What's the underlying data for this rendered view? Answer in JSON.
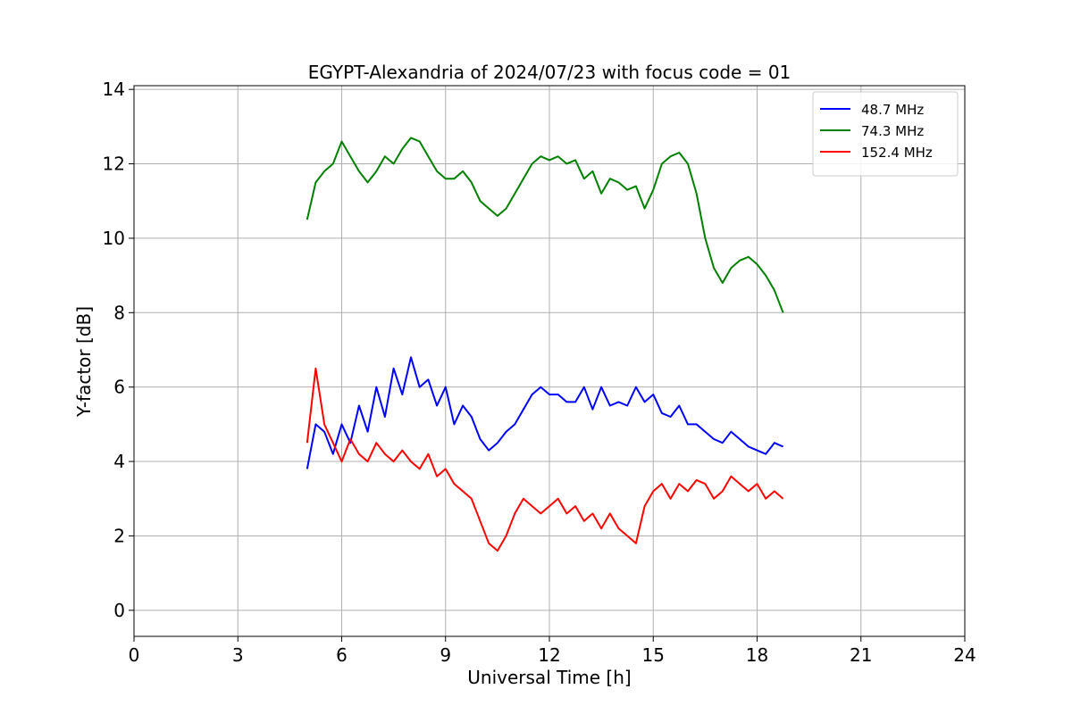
{
  "chart_data": {
    "type": "line",
    "title": "EGYPT-Alexandria of 2024/07/23 with focus code = 01",
    "xlabel": "Universal Time [h]",
    "ylabel": "Y-factor [dB]",
    "xlim": [
      0,
      24
    ],
    "ylim": [
      -0.7,
      14.1
    ],
    "xticks": [
      0,
      3,
      6,
      9,
      12,
      15,
      18,
      21,
      24
    ],
    "yticks": [
      0,
      2,
      4,
      6,
      8,
      10,
      12,
      14
    ],
    "xtick_labels": [
      "0",
      "3",
      "6",
      "9",
      "12",
      "15",
      "18",
      "21",
      "24"
    ],
    "ytick_labels": [
      "0",
      "2",
      "4",
      "6",
      "8",
      "10",
      "12",
      "14"
    ],
    "grid": true,
    "legend_position": "top-right",
    "series": [
      {
        "name": " 48.7 MHz",
        "color": "#0000ff",
        "x": [
          5.0,
          5.25,
          5.5,
          5.75,
          6.0,
          6.25,
          6.5,
          6.75,
          7.0,
          7.25,
          7.5,
          7.75,
          8.0,
          8.25,
          8.5,
          8.75,
          9.0,
          9.25,
          9.5,
          9.75,
          10.0,
          10.25,
          10.5,
          10.75,
          11.0,
          11.25,
          11.5,
          11.75,
          12.0,
          12.25,
          12.5,
          12.75,
          13.0,
          13.25,
          13.5,
          13.75,
          14.0,
          14.25,
          14.5,
          14.75,
          15.0,
          15.25,
          15.5,
          15.75,
          16.0,
          16.25,
          16.5,
          16.75,
          17.0,
          17.25,
          17.5,
          17.75,
          18.0,
          18.25,
          18.5,
          18.75
        ],
        "values": [
          3.8,
          5.0,
          4.8,
          4.2,
          5.0,
          4.5,
          5.5,
          4.8,
          6.0,
          5.2,
          6.5,
          5.8,
          6.8,
          6.0,
          6.2,
          5.5,
          6.0,
          5.0,
          5.5,
          5.2,
          4.6,
          4.3,
          4.5,
          4.8,
          5.0,
          5.4,
          5.8,
          6.0,
          5.8,
          5.8,
          5.6,
          5.6,
          6.0,
          5.4,
          6.0,
          5.5,
          5.6,
          5.5,
          6.0,
          5.6,
          5.8,
          5.3,
          5.2,
          5.5,
          5.0,
          5.0,
          4.8,
          4.6,
          4.5,
          4.8,
          4.6,
          4.4,
          4.3,
          4.2,
          4.5,
          4.4
        ]
      },
      {
        "name": " 74.3 MHz",
        "color": "#008000",
        "x": [
          5.0,
          5.25,
          5.5,
          5.75,
          6.0,
          6.25,
          6.5,
          6.75,
          7.0,
          7.25,
          7.5,
          7.75,
          8.0,
          8.25,
          8.5,
          8.75,
          9.0,
          9.25,
          9.5,
          9.75,
          10.0,
          10.25,
          10.5,
          10.75,
          11.0,
          11.25,
          11.5,
          11.75,
          12.0,
          12.25,
          12.5,
          12.75,
          13.0,
          13.25,
          13.5,
          13.75,
          14.0,
          14.25,
          14.5,
          14.75,
          15.0,
          15.25,
          15.5,
          15.75,
          16.0,
          16.25,
          16.5,
          16.75,
          17.0,
          17.25,
          17.5,
          17.75,
          18.0,
          18.25,
          18.5,
          18.75
        ],
        "values": [
          10.5,
          11.5,
          11.8,
          12.0,
          12.6,
          12.2,
          11.8,
          11.5,
          11.8,
          12.2,
          12.0,
          12.4,
          12.7,
          12.6,
          12.2,
          11.8,
          11.6,
          11.6,
          11.8,
          11.5,
          11.0,
          10.8,
          10.6,
          10.8,
          11.2,
          11.6,
          12.0,
          12.2,
          12.1,
          12.2,
          12.0,
          12.1,
          11.6,
          11.8,
          11.2,
          11.6,
          11.5,
          11.3,
          11.4,
          10.8,
          11.3,
          12.0,
          12.2,
          12.3,
          12.0,
          11.2,
          10.0,
          9.2,
          8.8,
          9.2,
          9.4,
          9.5,
          9.3,
          9.0,
          8.6,
          8.0
        ]
      },
      {
        "name": " 152.4 MHz",
        "color": "#ff0000",
        "x": [
          5.0,
          5.25,
          5.5,
          5.75,
          6.0,
          6.25,
          6.5,
          6.75,
          7.0,
          7.25,
          7.5,
          7.75,
          8.0,
          8.25,
          8.5,
          8.75,
          9.0,
          9.25,
          9.5,
          9.75,
          10.0,
          10.25,
          10.5,
          10.75,
          11.0,
          11.25,
          11.5,
          11.75,
          12.0,
          12.25,
          12.5,
          12.75,
          13.0,
          13.25,
          13.5,
          13.75,
          14.0,
          14.25,
          14.5,
          14.75,
          15.0,
          15.25,
          15.5,
          15.75,
          16.0,
          16.25,
          16.5,
          16.75,
          17.0,
          17.25,
          17.5,
          17.75,
          18.0,
          18.25,
          18.5,
          18.75
        ],
        "values": [
          4.5,
          6.5,
          5.0,
          4.5,
          4.0,
          4.6,
          4.2,
          4.0,
          4.5,
          4.2,
          4.0,
          4.3,
          4.0,
          3.8,
          4.2,
          3.6,
          3.8,
          3.4,
          3.2,
          3.0,
          2.4,
          1.8,
          1.6,
          2.0,
          2.6,
          3.0,
          2.8,
          2.6,
          2.8,
          3.0,
          2.6,
          2.8,
          2.4,
          2.6,
          2.2,
          2.6,
          2.2,
          2.0,
          1.8,
          2.8,
          3.2,
          3.4,
          3.0,
          3.4,
          3.2,
          3.5,
          3.4,
          3.0,
          3.2,
          3.6,
          3.4,
          3.2,
          3.4,
          3.0,
          3.2,
          3.0
        ]
      }
    ]
  }
}
